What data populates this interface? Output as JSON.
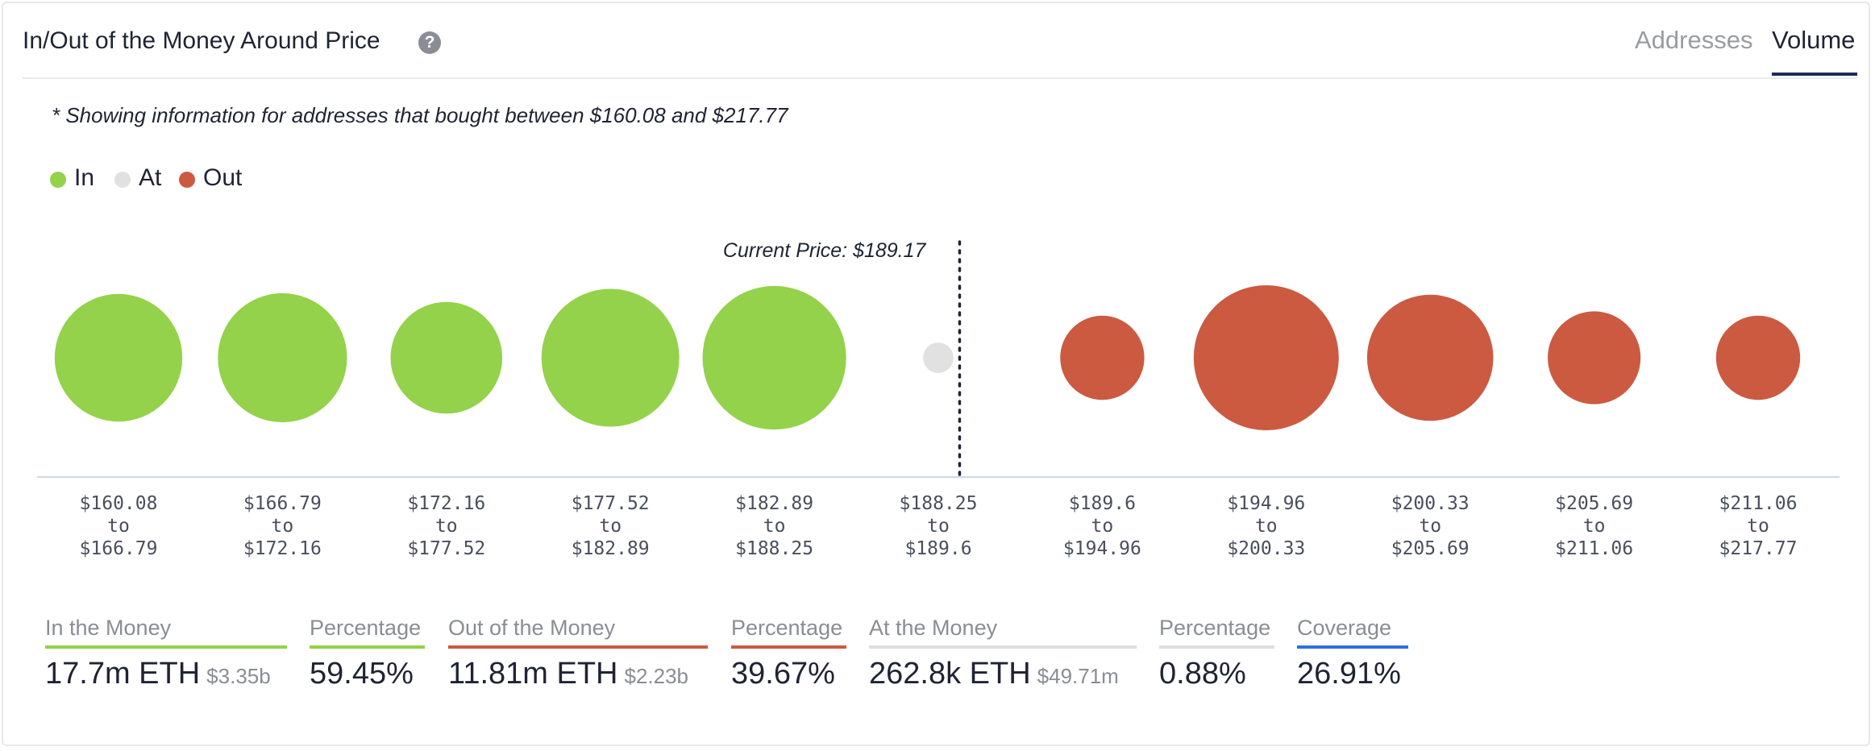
{
  "header": {
    "title": "In/Out of the Money Around Price",
    "help_icon": "question-circle-icon",
    "tabs": [
      {
        "label": "Addresses",
        "active": false
      },
      {
        "label": "Volume",
        "active": true
      }
    ]
  },
  "note": "* Showing information for addresses that bought between $160.08 and $217.77",
  "legend": [
    {
      "label": "In",
      "color": "#93d24a"
    },
    {
      "label": "At",
      "color": "#e1e1e1"
    },
    {
      "label": "Out",
      "color": "#cb5a41"
    }
  ],
  "chart_data": {
    "type": "bubble",
    "current_price_label": "Current Price: $189.17",
    "current_price": 189.17,
    "colors": {
      "In": "#93d24a",
      "At": "#e1e1e1",
      "Out": "#cb5a41"
    },
    "buckets": [
      {
        "from": "$160.08",
        "to": "$166.79",
        "status": "In",
        "relative_size": 0.88
      },
      {
        "from": "$166.79",
        "to": "$172.16",
        "status": "In",
        "relative_size": 0.89
      },
      {
        "from": "$172.16",
        "to": "$177.52",
        "status": "In",
        "relative_size": 0.77
      },
      {
        "from": "$177.52",
        "to": "$182.89",
        "status": "In",
        "relative_size": 0.95
      },
      {
        "from": "$182.89",
        "to": "$188.25",
        "status": "In",
        "relative_size": 0.99
      },
      {
        "from": "$188.25",
        "to": "$189.6",
        "status": "At",
        "relative_size": 0.21
      },
      {
        "from": "$189.6",
        "to": "$194.96",
        "status": "Out",
        "relative_size": 0.58
      },
      {
        "from": "$194.96",
        "to": "$200.33",
        "status": "Out",
        "relative_size": 1.0
      },
      {
        "from": "$200.33",
        "to": "$205.69",
        "status": "Out",
        "relative_size": 0.87
      },
      {
        "from": "$205.69",
        "to": "$211.06",
        "status": "Out",
        "relative_size": 0.64
      },
      {
        "from": "$211.06",
        "to": "$217.77",
        "status": "Out",
        "relative_size": 0.58
      }
    ],
    "connector_word": "to"
  },
  "stats": [
    {
      "label": "In the Money",
      "value": "17.7m ETH",
      "sub": "$3.35b",
      "color": "#93d24a"
    },
    {
      "label": "Percentage",
      "value": "59.45%",
      "sub": "",
      "color": "#93d24a"
    },
    {
      "label": "Out of the Money",
      "value": "11.81m ETH",
      "sub": "$2.23b",
      "color": "#cb5a41"
    },
    {
      "label": "Percentage",
      "value": "39.67%",
      "sub": "",
      "color": "#cb5a41"
    },
    {
      "label": "At the Money",
      "value": "262.8k ETH",
      "sub": "$49.71m",
      "color": "#dedede"
    },
    {
      "label": "Percentage",
      "value": "0.88%",
      "sub": "",
      "color": "#dedede"
    },
    {
      "label": "Coverage",
      "value": "26.91%",
      "sub": "",
      "color": "#2f6fe0"
    }
  ]
}
